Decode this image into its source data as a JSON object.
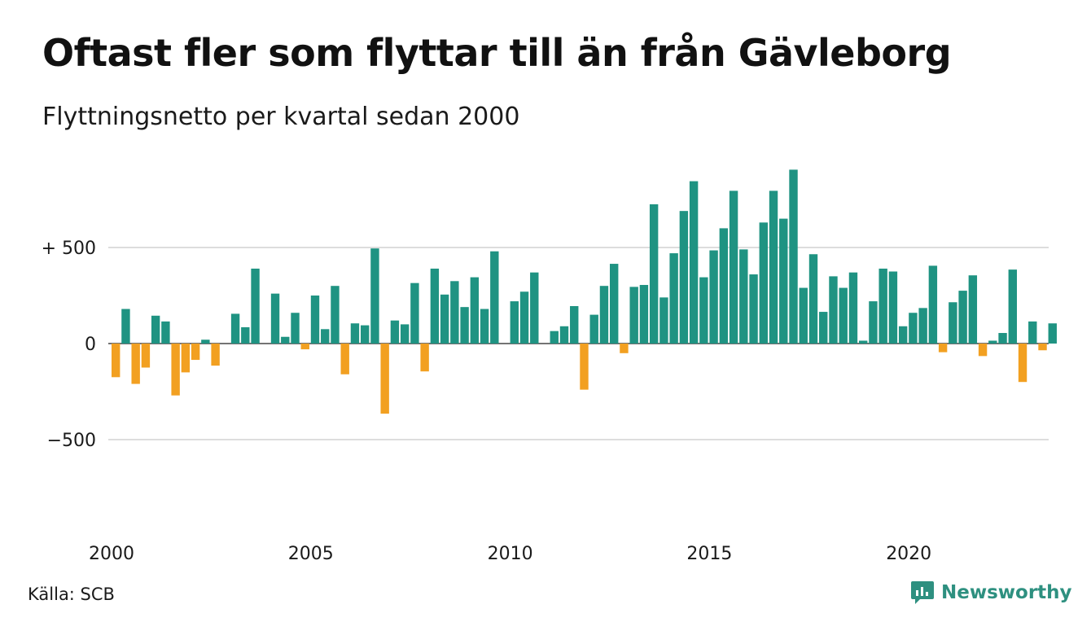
{
  "title": "Oftast fler som flyttar till än från Gävleborg",
  "subtitle": "Flyttningsnetto per kvartal sedan 2000",
  "source": "Källa: SCB",
  "brand": "Newsworthy",
  "colors": {
    "positive": "#1f9382",
    "negative": "#f2a021",
    "grid": "#dddddd",
    "brand": "#2e9080"
  },
  "chart_data": {
    "type": "bar",
    "ylim": [
      -1000,
      950
    ],
    "ytick_values": [
      500,
      0,
      -500
    ],
    "ytick_labels": [
      "+ 500",
      "0",
      "−500"
    ],
    "xtick_labels": [
      "2000",
      "2005",
      "2010",
      "2015",
      "2020"
    ],
    "x_start": "2000 Q1",
    "values": [
      -175,
      180,
      -210,
      -125,
      145,
      115,
      -270,
      -150,
      -85,
      20,
      -115,
      0,
      155,
      85,
      390,
      0,
      260,
      35,
      160,
      -30,
      250,
      75,
      300,
      -160,
      105,
      95,
      495,
      -365,
      120,
      100,
      315,
      -145,
      390,
      255,
      325,
      190,
      345,
      180,
      480,
      0,
      220,
      270,
      370,
      0,
      65,
      90,
      195,
      -240,
      150,
      300,
      415,
      -50,
      295,
      305,
      725,
      240,
      470,
      690,
      845,
      345,
      485,
      600,
      795,
      490,
      360,
      630,
      795,
      650,
      905,
      290,
      465,
      165,
      350,
      290,
      370,
      15,
      220,
      390,
      375,
      90,
      160,
      185,
      405,
      -45,
      215,
      275,
      355,
      -65,
      15,
      55,
      385,
      -200,
      115,
      -35,
      105
    ]
  }
}
